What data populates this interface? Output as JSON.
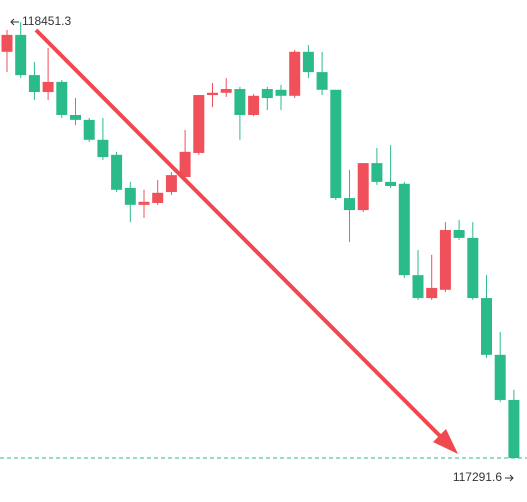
{
  "chart_data": {
    "type": "candlestick",
    "ylim": [
      117174.6,
      118509.8
    ],
    "up_color": "#f0505a",
    "down_color": "#2bbb8a",
    "max_price": 118451.3,
    "min_price": 117291.6,
    "open": [
      118372,
      118417,
      118310,
      118265,
      118292,
      118204,
      118191,
      118138,
      118098,
      118010,
      117965,
      117970,
      117999,
      118039,
      118103,
      118257,
      118263,
      118273,
      118204,
      118273,
      118271,
      118255,
      118372,
      118318,
      118271,
      117983,
      117951,
      118076,
      118026,
      118021,
      117778,
      117717,
      117739,
      117898,
      117877,
      117717,
      117566,
      117446
    ],
    "high": [
      118430,
      118451.3,
      118345,
      118382,
      118297,
      118249,
      118196,
      118196,
      118106,
      118026,
      118005,
      118031,
      118052,
      118164,
      118257,
      118289,
      118302,
      118279,
      118260,
      118279,
      118284,
      118377,
      118390,
      118372,
      118271,
      118058,
      118076,
      118116,
      118124,
      118026,
      117845,
      117832,
      117919,
      117925,
      117919,
      117778,
      117627,
      117473
    ],
    "low": [
      118318,
      118302,
      118244,
      118244,
      118196,
      118177,
      118132,
      118084,
      117999,
      117919,
      117930,
      117965,
      117991,
      118031,
      118098,
      118225,
      118252,
      118138,
      118201,
      118217,
      118217,
      118249,
      118302,
      118257,
      117978,
      117866,
      117946,
      118018,
      118010,
      117770,
      117712,
      117712,
      117733,
      117872,
      117712,
      117558,
      117441,
      117291.6
    ],
    "close": [
      118417,
      118310,
      118265,
      118292,
      118204,
      118191,
      118138,
      118092,
      118005,
      117965,
      117973,
      117997,
      118044,
      118106,
      118257,
      118263,
      118273,
      118204,
      118255,
      118249,
      118255,
      118372,
      118318,
      118271,
      117983,
      117951,
      118076,
      118026,
      118015,
      117778,
      117717,
      117744,
      117898,
      117877,
      117717,
      117566,
      117446,
      117291.6
    ]
  }
}
